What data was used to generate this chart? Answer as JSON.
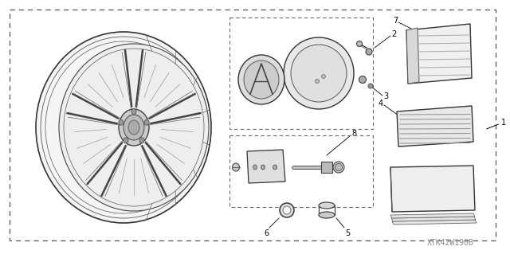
{
  "bg_color": "#ffffff",
  "line_color": "#333333",
  "watermark": "XTK42W190B",
  "fig_w": 6.4,
  "fig_h": 3.19,
  "dpi": 100
}
